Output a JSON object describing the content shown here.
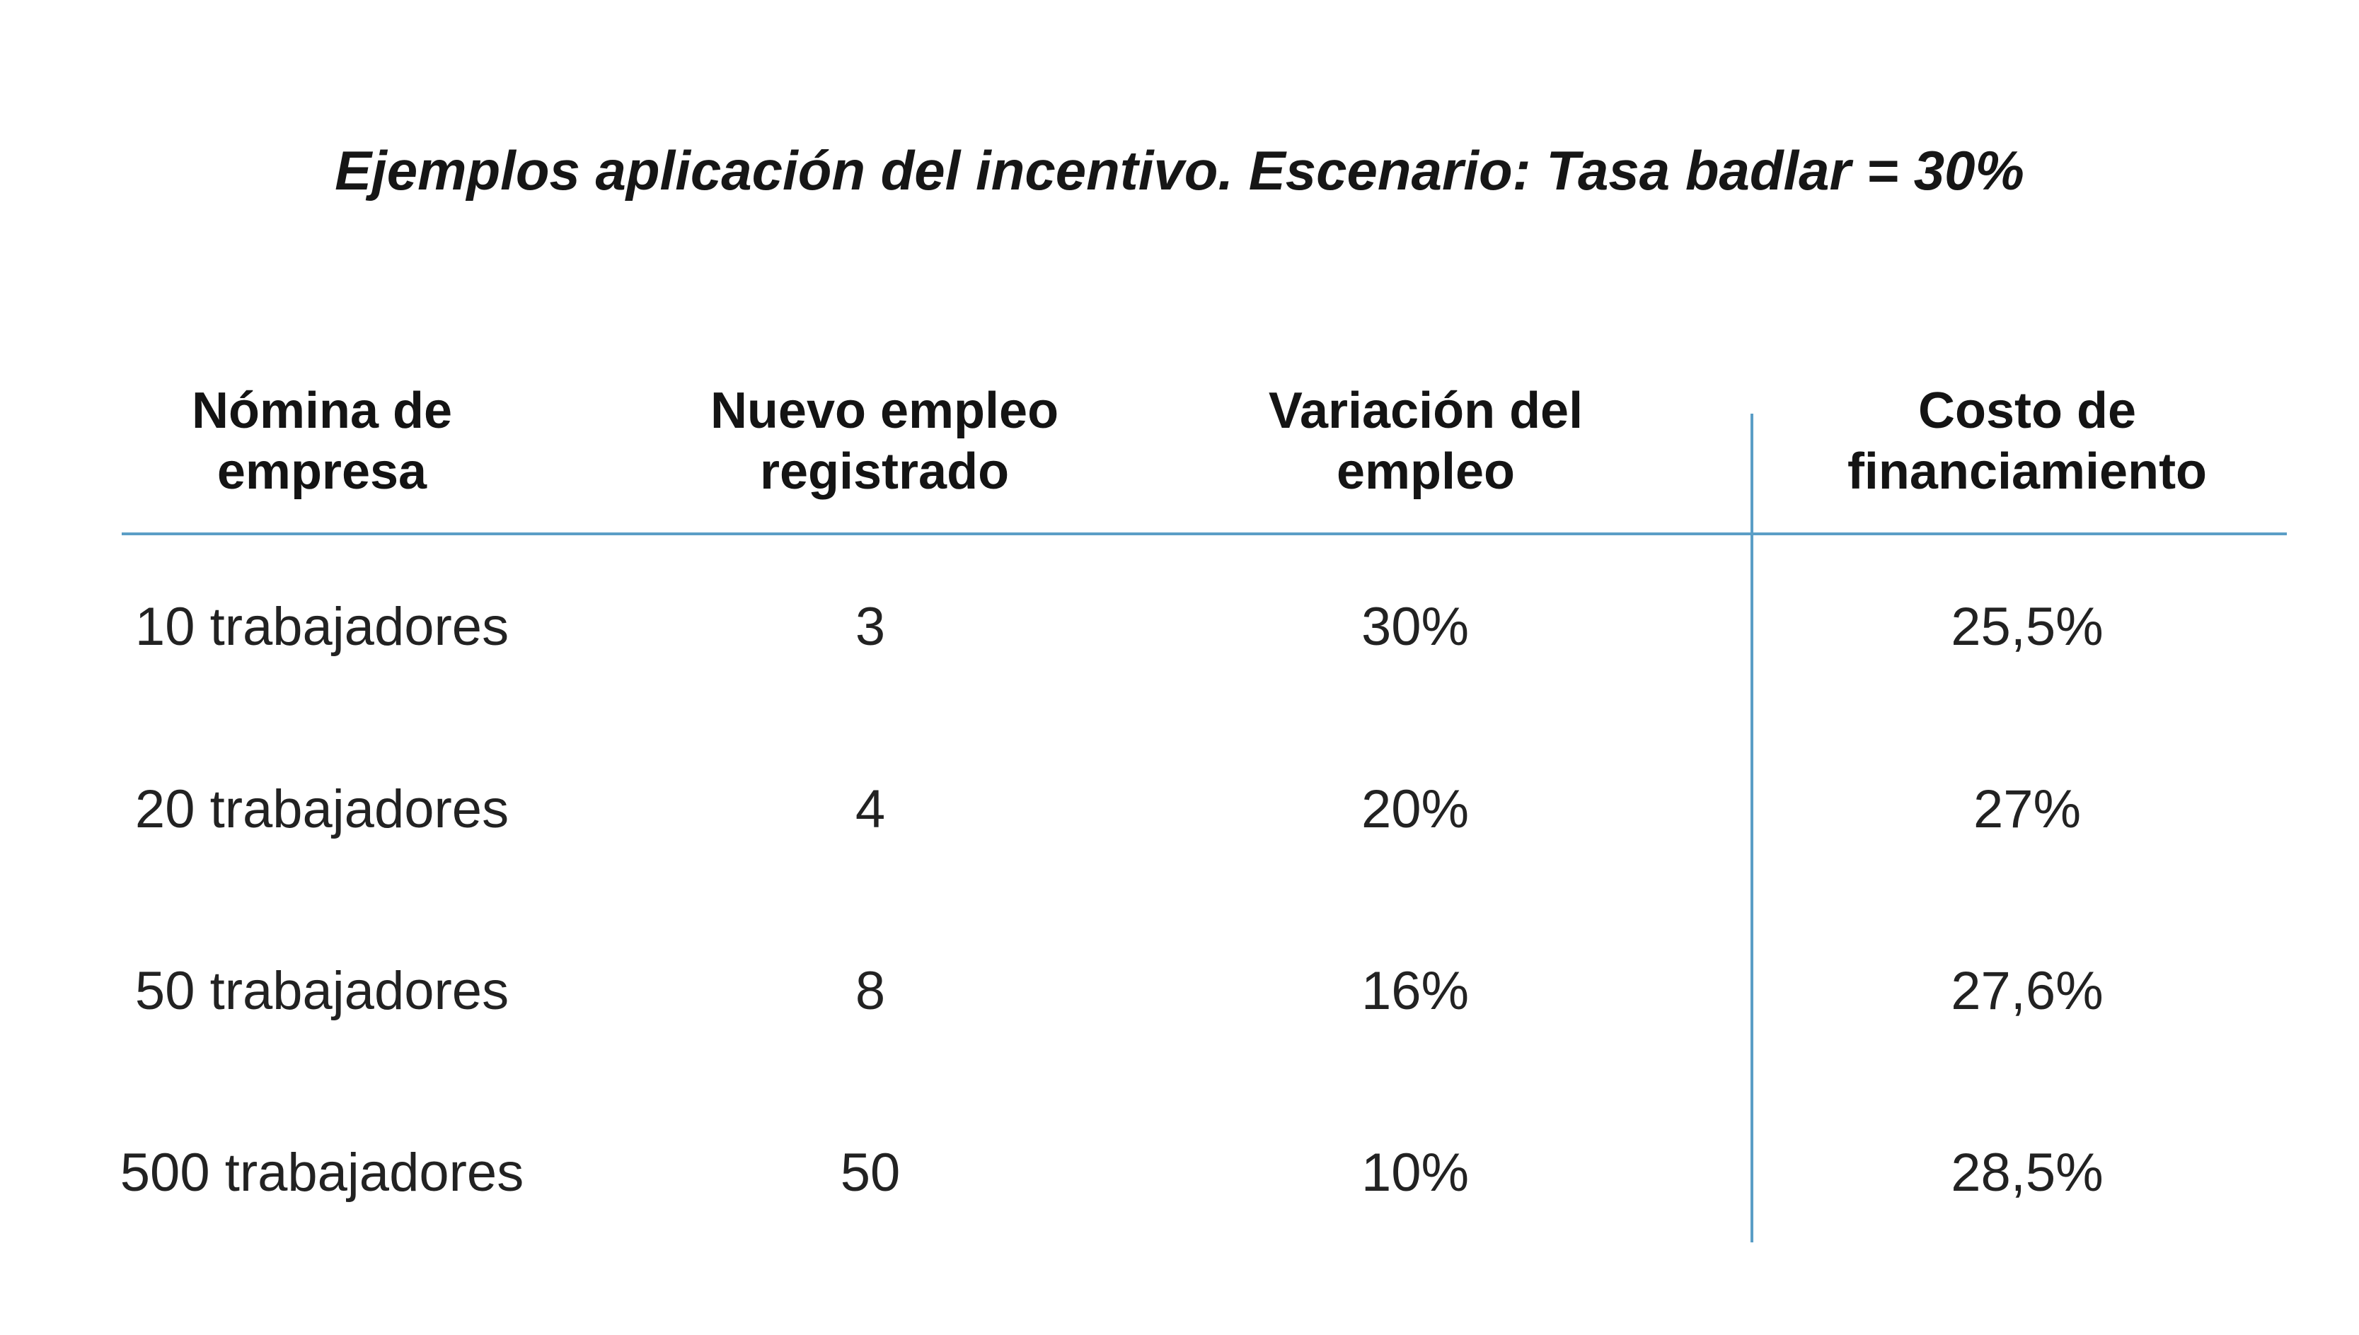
{
  "title": "Ejemplos aplicación del incentivo. Escenario: Tasa badlar = 30%",
  "table": {
    "headers": [
      {
        "line1": "Nómina de",
        "line2": "empresa"
      },
      {
        "line1": "Nuevo empleo",
        "line2": "registrado"
      },
      {
        "line1": "Variación del",
        "line2": "empleo"
      },
      {
        "line1": "Costo de",
        "line2": "financiamiento"
      }
    ],
    "rows": [
      [
        "10 trabajadores",
        "3",
        "30%",
        "25,5%"
      ],
      [
        "20 trabajadores",
        "4",
        "20%",
        "27%"
      ],
      [
        "50 trabajadores",
        "8",
        "16%",
        "27,6%"
      ],
      [
        "500 trabajadores",
        "50",
        "10%",
        "28,5%"
      ]
    ]
  },
  "colors": {
    "rule": "#5b9ec6",
    "text": "#1a1a1a"
  }
}
